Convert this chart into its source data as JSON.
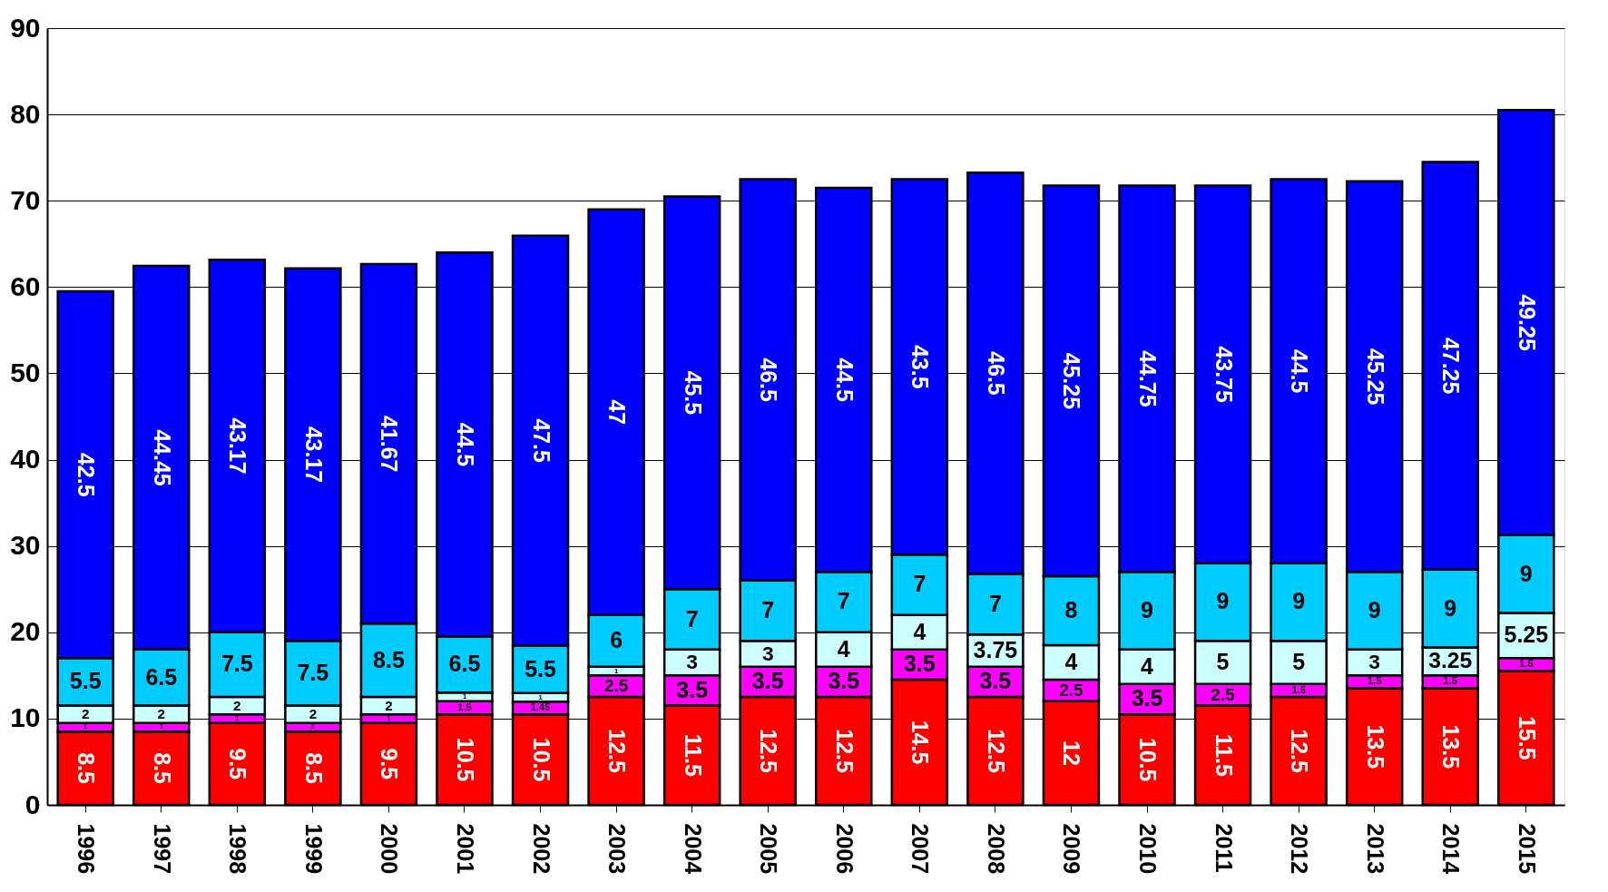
{
  "chart_data": {
    "type": "bar",
    "stacked": true,
    "data_labels": true,
    "grid": "y",
    "legend": false,
    "categories": [
      "1996",
      "1997",
      "1998",
      "1999",
      "2000",
      "2001",
      "2002",
      "2003",
      "2004",
      "2005",
      "2006",
      "2007",
      "2008",
      "2009",
      "2010",
      "2011",
      "2012",
      "2013",
      "2014",
      "2015"
    ],
    "ylim": [
      0,
      90
    ],
    "yticks": [
      0,
      10,
      20,
      30,
      40,
      50,
      60,
      70,
      80,
      90
    ],
    "series": [
      {
        "color": "#ff0000",
        "values": [
          8.5,
          8.5,
          9.5,
          8.5,
          9.5,
          10.5,
          10.5,
          12.5,
          11.5,
          12.5,
          12.5,
          14.5,
          12.5,
          12,
          10.5,
          11.5,
          12.5,
          13.5,
          13.5,
          15.5
        ]
      },
      {
        "color": "#ff00ff",
        "values": [
          1,
          1,
          1,
          1,
          1,
          1.5,
          1.45,
          2.5,
          3.5,
          3.5,
          3.5,
          3.5,
          3.5,
          2.5,
          3.5,
          2.5,
          1.5,
          1.5,
          1.5,
          1.5
        ]
      },
      {
        "color": "#ccffff",
        "values": [
          2,
          2,
          2,
          2,
          2,
          1,
          1,
          1,
          3,
          3,
          4,
          4,
          3.75,
          4,
          4,
          5,
          5,
          3,
          3.25,
          5.25
        ]
      },
      {
        "color": "#00ccff",
        "values": [
          5.5,
          6.5,
          7.5,
          7.5,
          8.5,
          6.5,
          5.5,
          6,
          7,
          7,
          7,
          7,
          7,
          8,
          9,
          9,
          9,
          9,
          9,
          9
        ]
      },
      {
        "color": "#0000ff",
        "values": [
          42.5,
          44.45,
          43.17,
          43.17,
          41.67,
          44.5,
          47.5,
          47,
          45.5,
          46.5,
          44.5,
          43.5,
          46.5,
          45.25,
          44.75,
          43.75,
          44.5,
          45.25,
          47.25,
          49.25
        ]
      }
    ]
  }
}
